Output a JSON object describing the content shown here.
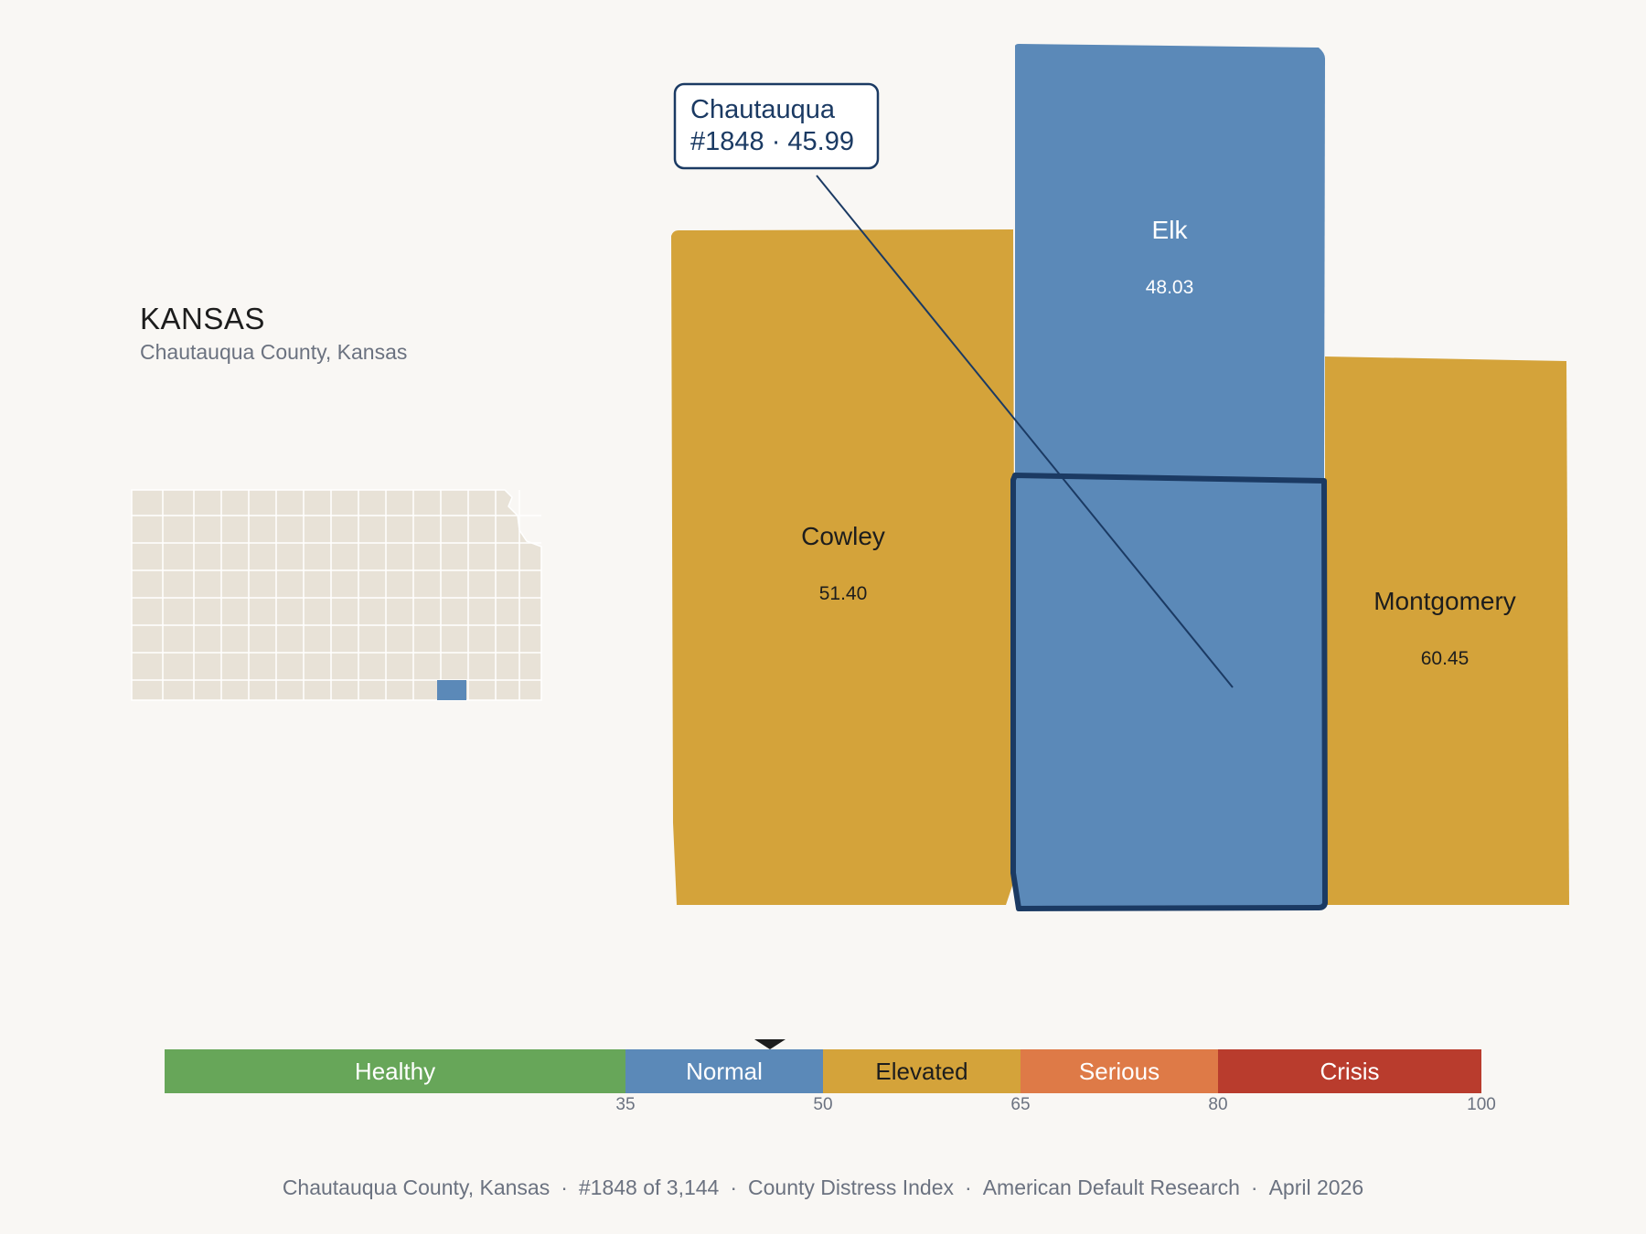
{
  "state": {
    "name": "KANSAS",
    "subtitle": "Chautauqua County, Kansas",
    "map_base_color": "#e8e2d7",
    "map_highlight_color": "#5b89b8"
  },
  "callout": {
    "line1": "Chautauqua",
    "line2": "#1848 · 45.99"
  },
  "counties": [
    {
      "name": "Cowley",
      "value": "51.40",
      "color": "#d4a33a",
      "text_color": "#1d1d1d"
    },
    {
      "name": "Elk",
      "value": "48.03",
      "color": "#5b89b8",
      "text_color": "#ffffff"
    },
    {
      "name": "Montgomery",
      "value": "60.45",
      "color": "#d4a33a",
      "text_color": "#1d1d1d"
    },
    {
      "name": "Chautauqua",
      "value": "45.99",
      "color": "#5b89b8",
      "outline": "#1b3a63",
      "selected": true
    }
  ],
  "scale": {
    "segments": [
      {
        "label": "Healthy",
        "color": "#67a659",
        "text_color": "#ffffff"
      },
      {
        "label": "Normal",
        "color": "#5b89b8",
        "text_color": "#ffffff"
      },
      {
        "label": "Elevated",
        "color": "#d4a33a",
        "text_color": "#1d1d1d"
      },
      {
        "label": "Serious",
        "color": "#de7a47",
        "text_color": "#ffffff"
      },
      {
        "label": "Crisis",
        "color": "#b93c2d",
        "text_color": "#ffffff"
      }
    ],
    "ticks": [
      "35",
      "50",
      "65",
      "80",
      "100"
    ],
    "marker_value": 45.99
  },
  "footer": {
    "county": "Chautauqua County, Kansas",
    "rank": "#1848 of 3,144",
    "index": "County Distress Index",
    "source": "American Default Research",
    "date": "April 2026"
  }
}
